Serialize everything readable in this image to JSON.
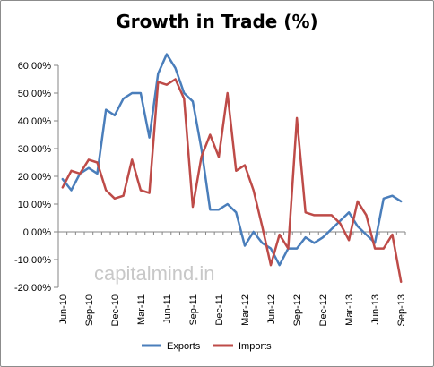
{
  "chart_data": {
    "type": "line",
    "title": "Growth in Trade (%)",
    "xlabel": "",
    "ylabel": "",
    "ylim": [
      -0.2,
      0.6
    ],
    "yticks": [
      0.6,
      0.5,
      0.4,
      0.3,
      0.2,
      0.1,
      0.0,
      -0.1,
      -0.2
    ],
    "ytick_labels": [
      "60.00%",
      "50.00%",
      "40.00%",
      "30.00%",
      "20.00%",
      "10.00%",
      "0.00%",
      "-10.00%",
      "-20.00%"
    ],
    "x": [
      "Jun-10",
      "Jul-10",
      "Aug-10",
      "Sep-10",
      "Oct-10",
      "Nov-10",
      "Dec-10",
      "Jan-11",
      "Feb-11",
      "Mar-11",
      "Apr-11",
      "May-11",
      "Jun-11",
      "Jul-11",
      "Aug-11",
      "Sep-11",
      "Oct-11",
      "Nov-11",
      "Dec-11",
      "Jan-12",
      "Feb-12",
      "Mar-12",
      "Apr-12",
      "May-12",
      "Jun-12",
      "Jul-12",
      "Aug-12",
      "Sep-12",
      "Oct-12",
      "Nov-12",
      "Dec-12",
      "Jan-13",
      "Feb-13",
      "Mar-13",
      "Apr-13",
      "May-13",
      "Jun-13",
      "Jul-13",
      "Aug-13",
      "Sep-13"
    ],
    "xtick_labels": [
      "Jun-10",
      "Sep-10",
      "Dec-10",
      "Mar-11",
      "Jun-11",
      "Sep-11",
      "Dec-11",
      "Mar-12",
      "Jun-12",
      "Sep-12",
      "Dec-12",
      "Mar-13",
      "Jun-13",
      "Sep-13"
    ],
    "xtick_indices": [
      0,
      3,
      6,
      9,
      12,
      15,
      18,
      21,
      24,
      27,
      30,
      33,
      36,
      39
    ],
    "series": [
      {
        "name": "Exports",
        "color": "#4a7ebb",
        "values": [
          0.19,
          0.15,
          0.21,
          0.23,
          0.21,
          0.44,
          0.42,
          0.48,
          0.5,
          0.5,
          0.34,
          0.57,
          0.64,
          0.59,
          0.5,
          0.47,
          0.3,
          0.08,
          0.08,
          0.1,
          0.07,
          -0.05,
          0.0,
          -0.04,
          -0.06,
          -0.12,
          -0.06,
          -0.06,
          -0.02,
          -0.04,
          -0.02,
          0.01,
          0.04,
          0.07,
          0.02,
          -0.01,
          -0.04,
          0.12,
          0.13,
          0.11
        ]
      },
      {
        "name": "Imports",
        "color": "#be4b48",
        "values": [
          0.16,
          0.22,
          0.21,
          0.26,
          0.25,
          0.15,
          0.12,
          0.13,
          0.26,
          0.15,
          0.14,
          0.54,
          0.53,
          0.55,
          0.48,
          0.09,
          0.27,
          0.35,
          0.27,
          0.5,
          0.22,
          0.24,
          0.15,
          0.02,
          -0.12,
          -0.01,
          -0.06,
          0.41,
          0.07,
          0.06,
          0.06,
          0.06,
          0.03,
          -0.03,
          0.11,
          0.06,
          -0.06,
          -0.06,
          -0.01,
          -0.18
        ]
      }
    ],
    "watermark": "capitalmind.in",
    "legend_position": "bottom",
    "grid": false
  }
}
